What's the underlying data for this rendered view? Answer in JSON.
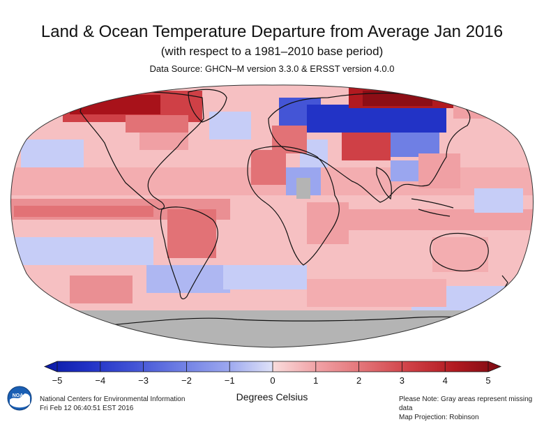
{
  "header": {
    "title": "Land & Ocean Temperature Departure from Average Jan 2016",
    "subtitle": "(with respect to a 1981–2010 base period)",
    "source": "Data Source: GHCN–M version 3.3.0 & ERSST version 4.0.0"
  },
  "colorbar": {
    "title": "Degrees Celsius",
    "ticks": [
      "−5",
      "−4",
      "−3",
      "−2",
      "−1",
      "0",
      "1",
      "2",
      "3",
      "4",
      "5"
    ],
    "tick_values": [
      -5,
      -4,
      -3,
      -2,
      -1,
      0,
      1,
      2,
      3,
      4,
      5
    ],
    "colors": [
      "#0a1aa6",
      "#2233c6",
      "#4455d6",
      "#6f7fe4",
      "#9aa6ef",
      "#c6cdf7",
      "#f6c6c8",
      "#f0a0a4",
      "#e27276",
      "#cf4046",
      "#b11a20",
      "#7d0a12"
    ],
    "missing_color": "#b4b4b4"
  },
  "footer": {
    "org": "National Centers for Environmental Information",
    "timestamp": "Fri Feb 12 06:40:51 EST 2016",
    "note": "Please Note: Gray areas represent missing data",
    "projection": "Map Projection: Robinson"
  },
  "logo": {
    "text": "NOAA",
    "icon": "noaa-logo-icon"
  }
}
